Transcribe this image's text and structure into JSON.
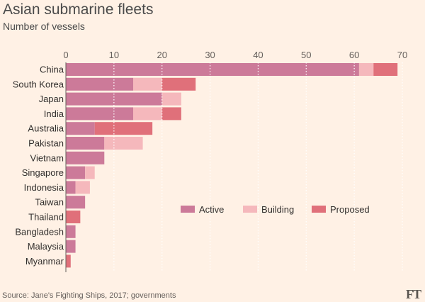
{
  "chart_data": {
    "type": "bar",
    "orientation": "horizontal",
    "stacked": true,
    "title": "Asian submarine fleets",
    "subtitle": "Number of vessels",
    "xlim": [
      0,
      70
    ],
    "xticks": [
      0,
      10,
      20,
      30,
      40,
      50,
      60,
      70
    ],
    "categories": [
      "China",
      "South Korea",
      "Japan",
      "India",
      "Australia",
      "Pakistan",
      "Vietnam",
      "Singapore",
      "Indonesia",
      "Taiwan",
      "Thailand",
      "Bangladesh",
      "Malaysia",
      "Myanmar"
    ],
    "series": [
      {
        "name": "Active",
        "color": "#cc7a99",
        "values": [
          61,
          14,
          20,
          14,
          6,
          8,
          8,
          4,
          2,
          4,
          0,
          2,
          2,
          0
        ]
      },
      {
        "name": "Building",
        "color": "#f5b8bc",
        "values": [
          3,
          6,
          4,
          6,
          0,
          8,
          0,
          2,
          3,
          0,
          0,
          0,
          0,
          0
        ]
      },
      {
        "name": "Proposed",
        "color": "#e0707a",
        "values": [
          5,
          7,
          0,
          4,
          12,
          0,
          0,
          0,
          0,
          0,
          3,
          0,
          0,
          1
        ]
      }
    ],
    "legend": "center-right"
  },
  "source": "Source: Jane's Fighting Ships, 2017; governments",
  "logo": "FT"
}
